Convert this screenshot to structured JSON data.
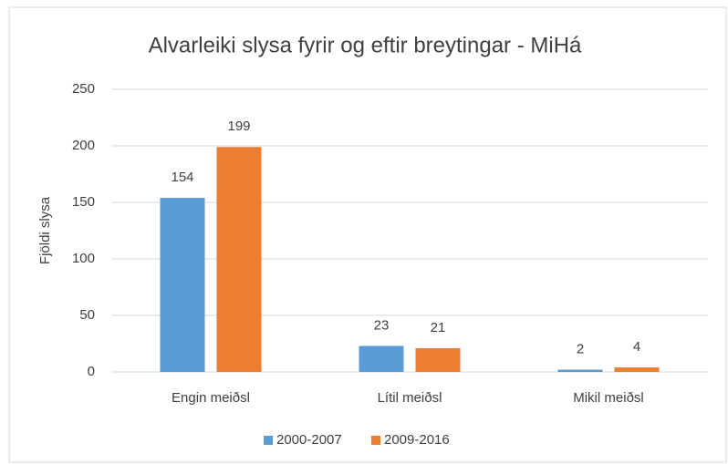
{
  "chart_data": {
    "type": "bar",
    "title": "Alvarleiki slysa fyrir og eftir breytingar - MiHá",
    "ylabel": "Fjöldi slysa",
    "categories": [
      "Engin meiðsl",
      "Lítil meiðsl",
      "Mikil meiðsl"
    ],
    "series": [
      {
        "name": "2000-2007",
        "color": "#5b9bd5",
        "values": [
          154,
          23,
          2
        ]
      },
      {
        "name": "2009-2016",
        "color": "#ed7d31",
        "values": [
          199,
          21,
          4
        ]
      }
    ],
    "ylim": [
      0,
      250
    ],
    "yticks": [
      0,
      50,
      100,
      150,
      200,
      250
    ],
    "grid": true,
    "legend": "bottom"
  }
}
